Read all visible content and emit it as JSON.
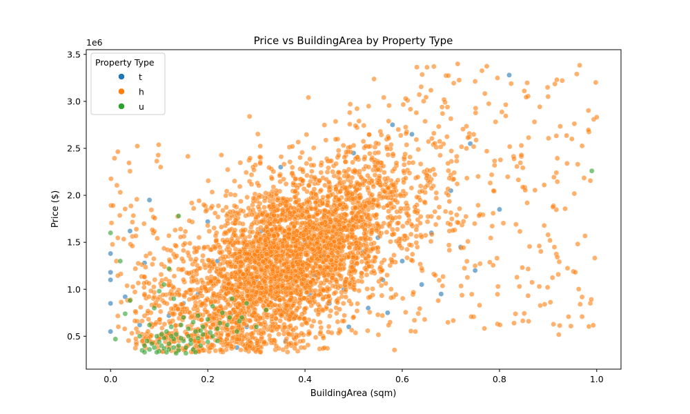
{
  "chart_data": {
    "type": "scatter",
    "title": "Price vs BuildingArea by Property Type",
    "xlabel": "BuildingArea (sqm)",
    "ylabel": "Price ($)",
    "y_offset_label": "1e6",
    "xlim": [
      -0.05,
      1.05
    ],
    "ylim": [
      0.15,
      3.55
    ],
    "x_ticks": [
      0.0,
      0.2,
      0.4,
      0.6,
      0.8,
      1.0
    ],
    "x_tick_labels": [
      "0.0",
      "0.2",
      "0.4",
      "0.6",
      "0.8",
      "1.0"
    ],
    "y_ticks": [
      0.5,
      1.0,
      1.5,
      2.0,
      2.5,
      3.0,
      3.5
    ],
    "y_tick_labels": [
      "0.5",
      "1.0",
      "1.5",
      "2.0",
      "2.5",
      "3.0",
      "3.5"
    ],
    "grid": false,
    "legend": {
      "title": "Property Type",
      "placement": "upper-left",
      "entries": [
        "t",
        "h",
        "u"
      ]
    },
    "series": [
      {
        "name": "t",
        "color": "#1f77b4",
        "points": [
          [
            0.0,
            1.18
          ],
          [
            0.0,
            1.1
          ],
          [
            0.0,
            0.85
          ],
          [
            0.0,
            0.55
          ],
          [
            0.0,
            1.38
          ],
          [
            0.03,
            0.92
          ],
          [
            0.04,
            1.62
          ],
          [
            0.06,
            0.62
          ],
          [
            0.07,
            1.28
          ],
          [
            0.08,
            1.95
          ],
          [
            0.12,
            0.72
          ],
          [
            0.15,
            0.85
          ],
          [
            0.18,
            0.95
          ],
          [
            0.2,
            1.72
          ],
          [
            0.22,
            1.3
          ],
          [
            0.25,
            0.75
          ],
          [
            0.27,
            1.05
          ],
          [
            0.28,
            0.6
          ],
          [
            0.3,
            1.1
          ],
          [
            0.32,
            1.45
          ],
          [
            0.34,
            0.9
          ],
          [
            0.35,
            2.3
          ],
          [
            0.36,
            1.2
          ],
          [
            0.38,
            0.7
          ],
          [
            0.4,
            1.5
          ],
          [
            0.41,
            0.95
          ],
          [
            0.42,
            1.15
          ],
          [
            0.44,
            1.35
          ],
          [
            0.45,
            0.85
          ],
          [
            0.46,
            1.65
          ],
          [
            0.48,
            1.0
          ],
          [
            0.5,
            1.25
          ],
          [
            0.5,
            2.45
          ],
          [
            0.52,
            1.4
          ],
          [
            0.53,
            0.8
          ],
          [
            0.55,
            1.55
          ],
          [
            0.56,
            1.1
          ],
          [
            0.58,
            2.75
          ],
          [
            0.6,
            1.3
          ],
          [
            0.62,
            2.65
          ],
          [
            0.64,
            1.05
          ],
          [
            0.66,
            1.6
          ],
          [
            0.68,
            0.95
          ],
          [
            0.7,
            2.05
          ],
          [
            0.72,
            1.45
          ],
          [
            0.75,
            1.2
          ],
          [
            0.8,
            1.85
          ],
          [
            0.82,
            3.28
          ],
          [
            0.74,
            2.55
          ],
          [
            0.36,
            0.45
          ],
          [
            0.26,
            0.38
          ],
          [
            0.44,
            1.8
          ],
          [
            0.31,
            1.62
          ],
          [
            0.49,
            0.6
          ],
          [
            0.57,
            0.75
          ]
        ]
      },
      {
        "name": "h",
        "color": "#ff7f0e",
        "points": []
      },
      {
        "name": "u",
        "color": "#2ca02c",
        "points": [
          [
            0.0,
            1.6
          ],
          [
            0.01,
            0.47
          ],
          [
            0.02,
            1.3
          ],
          [
            0.03,
            0.74
          ],
          [
            0.04,
            0.88
          ],
          [
            0.06,
            0.5
          ],
          [
            0.065,
            0.35
          ],
          [
            0.07,
            0.4
          ],
          [
            0.075,
            0.45
          ],
          [
            0.08,
            0.36
          ],
          [
            0.085,
            0.42
          ],
          [
            0.09,
            0.38
          ],
          [
            0.095,
            0.5
          ],
          [
            0.1,
            0.34
          ],
          [
            0.1,
            0.44
          ],
          [
            0.105,
            0.4
          ],
          [
            0.11,
            0.37
          ],
          [
            0.11,
            0.48
          ],
          [
            0.115,
            0.55
          ],
          [
            0.12,
            0.36
          ],
          [
            0.12,
            0.42
          ],
          [
            0.125,
            0.6
          ],
          [
            0.13,
            0.38
          ],
          [
            0.13,
            0.47
          ],
          [
            0.135,
            0.52
          ],
          [
            0.14,
            0.35
          ],
          [
            0.14,
            0.4
          ],
          [
            0.145,
            0.62
          ],
          [
            0.15,
            0.45
          ],
          [
            0.15,
            0.7
          ],
          [
            0.155,
            0.38
          ],
          [
            0.16,
            0.5
          ],
          [
            0.16,
            0.58
          ],
          [
            0.165,
            0.42
          ],
          [
            0.17,
            0.65
          ],
          [
            0.17,
            0.36
          ],
          [
            0.175,
            0.55
          ],
          [
            0.18,
            0.48
          ],
          [
            0.18,
            0.72
          ],
          [
            0.185,
            0.4
          ],
          [
            0.19,
            0.6
          ],
          [
            0.19,
            0.52
          ],
          [
            0.2,
            0.44
          ],
          [
            0.2,
            0.68
          ],
          [
            0.21,
            0.5
          ],
          [
            0.21,
            0.82
          ],
          [
            0.22,
            0.58
          ],
          [
            0.22,
            0.45
          ],
          [
            0.23,
            0.75
          ],
          [
            0.24,
            0.62
          ],
          [
            0.25,
            0.9
          ],
          [
            0.26,
            0.55
          ],
          [
            0.27,
            0.7
          ],
          [
            0.28,
            0.85
          ],
          [
            0.3,
            0.6
          ],
          [
            0.32,
            0.78
          ],
          [
            0.1,
            0.98
          ],
          [
            0.12,
            1.22
          ],
          [
            0.09,
            0.8
          ],
          [
            0.14,
            1.78
          ],
          [
            0.11,
            1.05
          ],
          [
            0.08,
            0.62
          ],
          [
            0.13,
            0.9
          ],
          [
            0.99,
            2.26
          ],
          [
            0.07,
            0.33
          ],
          [
            0.095,
            0.33
          ],
          [
            0.115,
            0.33
          ],
          [
            0.135,
            0.32
          ],
          [
            0.155,
            0.32
          ],
          [
            0.175,
            0.33
          ],
          [
            0.105,
            0.52
          ],
          [
            0.125,
            0.5
          ],
          [
            0.145,
            0.48
          ],
          [
            0.165,
            0.46
          ],
          [
            0.185,
            0.56
          ],
          [
            0.205,
            0.54
          ],
          [
            0.225,
            0.64
          ],
          [
            0.245,
            0.7
          ],
          [
            0.265,
            0.66
          ]
        ]
      }
    ]
  }
}
